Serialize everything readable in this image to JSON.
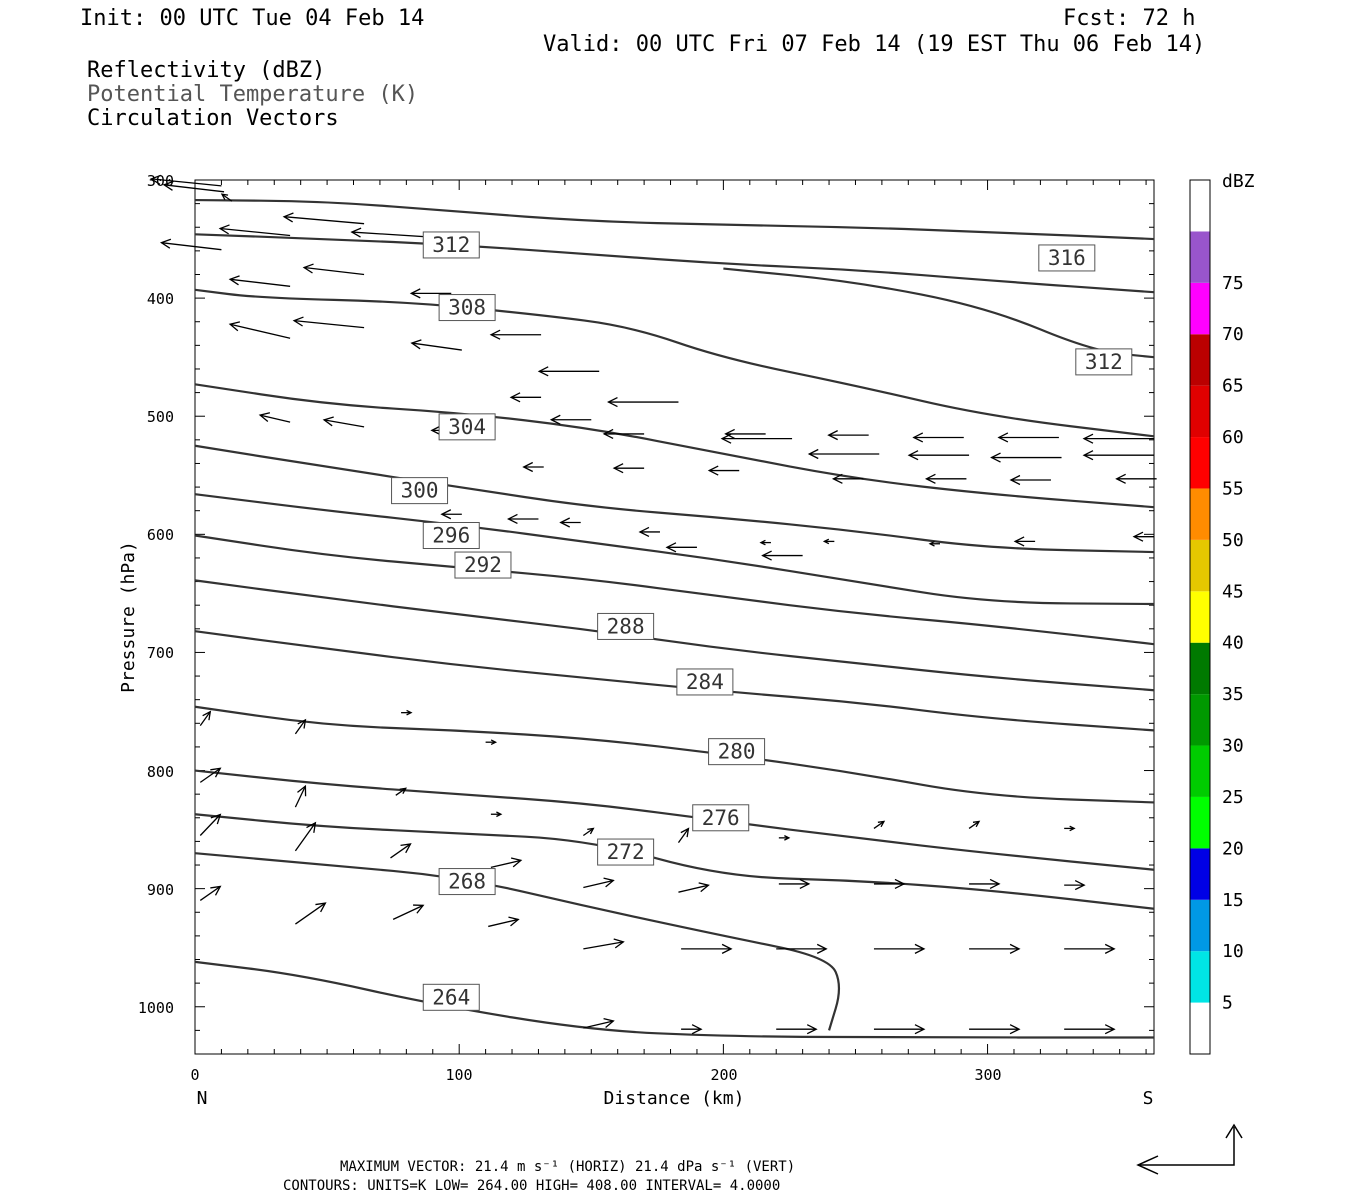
{
  "header": {
    "init": "Init: 00 UTC Tue 04 Feb 14",
    "fcst": "Fcst:   72 h",
    "valid": "Valid: 00 UTC Fri 07 Feb 14 (19 EST Thu 06 Feb 14)",
    "fields": [
      {
        "text": "Reflectivity (dBZ)",
        "color": "#000000"
      },
      {
        "text": "Potential Temperature (K)",
        "color": "#555555"
      },
      {
        "text": "Circulation Vectors",
        "color": "#000000"
      }
    ]
  },
  "footer": {
    "line1": "MAXIMUM VECTOR:  21.4 m s⁻¹ (HORIZ)        21.4 dPa s⁻¹ (VERT)",
    "line2": "CONTOURS:  UNITS=K  LOW=   264.00        HIGH=   408.00        INTERVAL=    4.0000"
  },
  "colorbar": {
    "title": "dBZ",
    "levels": [
      "5",
      "10",
      "15",
      "20",
      "25",
      "30",
      "35",
      "40",
      "45",
      "50",
      "55",
      "60",
      "65",
      "70",
      "75"
    ],
    "colors": [
      "#ffffff",
      "#00e5e5",
      "#0099e5",
      "#0000e5",
      "#00ff00",
      "#00cc00",
      "#009900",
      "#007a00",
      "#ffff00",
      "#e5c800",
      "#ff8c00",
      "#ff0000",
      "#e00000",
      "#bb0000",
      "#ff00ff",
      "#9955cc",
      "#ffffff"
    ]
  },
  "chart_data": {
    "type": "line",
    "title": "",
    "xlabel": "Distance (km)",
    "ylabel": "Pressure (hPa)",
    "xlim": [
      0,
      363
    ],
    "ylim": [
      1040,
      300
    ],
    "x_ticks": [
      "0",
      "100",
      "200",
      "300"
    ],
    "y_ticks": [
      "300",
      "400",
      "500",
      "600",
      "700",
      "800",
      "900",
      "1000"
    ],
    "x_end_labels": {
      "left": "N",
      "right": "S"
    },
    "contour_color": "#333333",
    "series": [
      {
        "name": "316",
        "label_at": [
          330,
          366
        ],
        "points": [
          [
            0,
            317
          ],
          [
            50,
            318
          ],
          [
            100,
            327
          ],
          [
            150,
            335
          ],
          [
            200,
            338
          ],
          [
            250,
            340
          ],
          [
            300,
            344
          ],
          [
            363,
            350
          ]
        ]
      },
      {
        "name": "312",
        "label_at": [
          97,
          355
        ],
        "points": [
          [
            0,
            346
          ],
          [
            50,
            350
          ],
          [
            100,
            355
          ],
          [
            150,
            363
          ],
          [
            200,
            371
          ],
          [
            250,
            376
          ],
          [
            300,
            385
          ],
          [
            363,
            395
          ]
        ]
      },
      {
        "name": "312",
        "label_at": [
          344,
          454
        ],
        "points": [
          [
            200,
            375
          ],
          [
            250,
            386
          ],
          [
            300,
            408
          ],
          [
            340,
            445
          ],
          [
            363,
            450
          ]
        ]
      },
      {
        "name": "308",
        "label_at": [
          103,
          408
        ],
        "points": [
          [
            0,
            393
          ],
          [
            25,
            400
          ],
          [
            80,
            403
          ],
          [
            130,
            414
          ],
          [
            165,
            424
          ],
          [
            200,
            451
          ],
          [
            250,
            474
          ],
          [
            300,
            500
          ],
          [
            363,
            517
          ]
        ]
      },
      {
        "name": "304",
        "label_at": [
          103,
          509
        ],
        "points": [
          [
            0,
            473
          ],
          [
            50,
            490
          ],
          [
            100,
            497
          ],
          [
            150,
            510
          ],
          [
            200,
            532
          ],
          [
            250,
            553
          ],
          [
            300,
            566
          ],
          [
            363,
            577
          ]
        ]
      },
      {
        "name": "300",
        "label_at": [
          85,
          563
        ],
        "points": [
          [
            0,
            525
          ],
          [
            50,
            543
          ],
          [
            100,
            560
          ],
          [
            150,
            577
          ],
          [
            200,
            586
          ],
          [
            250,
            597
          ],
          [
            300,
            612
          ],
          [
            363,
            615
          ]
        ]
      },
      {
        "name": "296",
        "label_at": [
          97,
          601
        ],
        "points": [
          [
            0,
            566
          ],
          [
            50,
            580
          ],
          [
            100,
            592
          ],
          [
            150,
            607
          ],
          [
            200,
            622
          ],
          [
            250,
            640
          ],
          [
            300,
            658
          ],
          [
            363,
            659
          ]
        ]
      },
      {
        "name": "292",
        "label_at": [
          109,
          626
        ],
        "points": [
          [
            0,
            601
          ],
          [
            50,
            618
          ],
          [
            100,
            628
          ],
          [
            150,
            638
          ],
          [
            200,
            653
          ],
          [
            250,
            667
          ],
          [
            300,
            677
          ],
          [
            363,
            693
          ]
        ]
      },
      {
        "name": "288",
        "label_at": [
          163,
          678
        ],
        "points": [
          [
            0,
            639
          ],
          [
            50,
            654
          ],
          [
            100,
            668
          ],
          [
            150,
            681
          ],
          [
            200,
            697
          ],
          [
            250,
            709
          ],
          [
            300,
            721
          ],
          [
            363,
            732
          ]
        ]
      },
      {
        "name": "284",
        "label_at": [
          193,
          725
        ],
        "points": [
          [
            0,
            682
          ],
          [
            50,
            697
          ],
          [
            100,
            711
          ],
          [
            150,
            722
          ],
          [
            200,
            733
          ],
          [
            250,
            742
          ],
          [
            300,
            756
          ],
          [
            363,
            766
          ]
        ]
      },
      {
        "name": "280",
        "label_at": [
          205,
          784
        ],
        "points": [
          [
            0,
            746
          ],
          [
            50,
            762
          ],
          [
            100,
            766
          ],
          [
            150,
            773
          ],
          [
            200,
            786
          ],
          [
            250,
            802
          ],
          [
            300,
            822
          ],
          [
            363,
            827
          ]
        ]
      },
      {
        "name": "276",
        "label_at": [
          199,
          840
        ],
        "points": [
          [
            0,
            800
          ],
          [
            50,
            812
          ],
          [
            100,
            820
          ],
          [
            150,
            828
          ],
          [
            200,
            843
          ],
          [
            250,
            857
          ],
          [
            300,
            870
          ],
          [
            363,
            884
          ]
        ]
      },
      {
        "name": "272",
        "label_at": [
          163,
          869
        ],
        "points": [
          [
            0,
            837
          ],
          [
            50,
            848
          ],
          [
            100,
            853
          ],
          [
            150,
            859
          ],
          [
            200,
            890
          ],
          [
            250,
            893
          ],
          [
            300,
            901
          ],
          [
            363,
            917
          ]
        ]
      },
      {
        "name": "268",
        "label_at": [
          103,
          894
        ],
        "points": [
          [
            0,
            870
          ],
          [
            50,
            880
          ],
          [
            100,
            890
          ],
          [
            150,
            916
          ],
          [
            200,
            940
          ],
          [
            240,
            958
          ],
          [
            245,
            983
          ],
          [
            240,
            1020
          ]
        ]
      },
      {
        "name": "264",
        "label_at": [
          97,
          992
        ],
        "points": [
          [
            0,
            962
          ],
          [
            40,
            973
          ],
          [
            90,
            998
          ],
          [
            150,
            1020
          ],
          [
            200,
            1025
          ],
          [
            260,
            1026
          ],
          [
            363,
            1026
          ]
        ]
      }
    ],
    "vectors": [
      [
        10,
        305,
        -7,
        -1
      ],
      [
        36,
        347,
        -7,
        -1
      ],
      [
        64,
        337,
        -8,
        -1
      ],
      [
        101,
        350,
        -11,
        -1
      ],
      [
        11,
        310,
        -6,
        -1
      ],
      [
        36,
        390,
        -6,
        -1
      ],
      [
        64,
        380,
        -6,
        -1
      ],
      [
        10,
        359,
        -6,
        -1
      ],
      [
        36,
        434,
        -6,
        -2
      ],
      [
        64,
        425,
        -7,
        -1
      ],
      [
        101,
        444,
        -5,
        -1
      ],
      [
        36,
        505,
        -3,
        -1
      ],
      [
        64,
        509,
        -4,
        -1
      ],
      [
        101,
        512,
        -3,
        0
      ],
      [
        101,
        583,
        -2,
        0
      ],
      [
        130,
        587,
        -3,
        0
      ],
      [
        190,
        611,
        -3,
        0
      ],
      [
        230,
        618,
        -4,
        0
      ],
      [
        14,
        318,
        -1,
        -1
      ],
      [
        97,
        396,
        -4,
        0
      ],
      [
        131,
        431,
        -5,
        0
      ],
      [
        153,
        462,
        -6,
        0
      ],
      [
        183,
        488,
        -7,
        0
      ],
      [
        226,
        519,
        -7,
        0
      ],
      [
        259,
        532,
        -7,
        0
      ],
      [
        293,
        533,
        -6,
        0
      ],
      [
        328,
        535,
        -7,
        0
      ],
      [
        363,
        533,
        -7,
        0
      ],
      [
        131,
        484,
        -3,
        0
      ],
      [
        150,
        503,
        -4,
        0
      ],
      [
        170,
        515,
        -4,
        0
      ],
      [
        216,
        515,
        -4,
        0
      ],
      [
        255,
        516,
        -4,
        0
      ],
      [
        291,
        518,
        -5,
        0
      ],
      [
        327,
        518,
        -6,
        0
      ],
      [
        363,
        519,
        -7,
        0
      ],
      [
        132,
        543,
        -2,
        0
      ],
      [
        170,
        544,
        -3,
        0
      ],
      [
        206,
        546,
        -3,
        0
      ],
      [
        253,
        553,
        -3,
        0
      ],
      [
        292,
        553,
        -4,
        0
      ],
      [
        324,
        554,
        -4,
        0
      ],
      [
        364,
        553,
        -4,
        0
      ],
      [
        146,
        590,
        -2,
        0
      ],
      [
        176,
        598,
        -2,
        0
      ],
      [
        218,
        607,
        -1,
        0
      ],
      [
        242,
        606,
        -1,
        0
      ],
      [
        282,
        608,
        -1,
        0
      ],
      [
        318,
        606,
        -2,
        0
      ],
      [
        363,
        602,
        -2,
        0
      ],
      [
        2,
        762,
        1,
        -2
      ],
      [
        38,
        769,
        1,
        -2
      ],
      [
        78,
        751,
        1,
        0
      ],
      [
        110,
        776,
        1,
        0
      ],
      [
        2,
        810,
        2,
        -2
      ],
      [
        38,
        831,
        1,
        -3
      ],
      [
        76,
        821,
        1,
        -1
      ],
      [
        112,
        837,
        1,
        0
      ],
      [
        2,
        855,
        2,
        -3
      ],
      [
        38,
        868,
        2,
        -4
      ],
      [
        74,
        874,
        2,
        -2
      ],
      [
        112,
        882,
        3,
        -1
      ],
      [
        2,
        910,
        2,
        -2
      ],
      [
        38,
        930,
        3,
        -3
      ],
      [
        75,
        926,
        3,
        -2
      ],
      [
        111,
        932,
        3,
        -1
      ],
      [
        147,
        951,
        4,
        -1
      ],
      [
        184,
        951,
        5,
        0
      ],
      [
        220,
        951,
        5,
        0
      ],
      [
        257,
        951,
        5,
        0
      ],
      [
        293,
        951,
        5,
        0
      ],
      [
        329,
        951,
        5,
        0
      ],
      [
        147,
        1018,
        3,
        -1
      ],
      [
        184,
        1019,
        2,
        0
      ],
      [
        220,
        1019,
        4,
        0
      ],
      [
        257,
        1019,
        5,
        0
      ],
      [
        293,
        1019,
        5,
        0
      ],
      [
        329,
        1019,
        5,
        0
      ],
      [
        147,
        899,
        3,
        -1
      ],
      [
        183,
        903,
        3,
        -1
      ],
      [
        221,
        896,
        3,
        0
      ],
      [
        257,
        896,
        3,
        0
      ],
      [
        293,
        896,
        3,
        0
      ],
      [
        329,
        897,
        2,
        0
      ],
      [
        147,
        855,
        1,
        -1
      ],
      [
        183,
        861,
        1,
        -2
      ],
      [
        221,
        857,
        1,
        0
      ],
      [
        257,
        849,
        1,
        -1
      ],
      [
        293,
        849,
        1,
        -1
      ],
      [
        329,
        849,
        1,
        0
      ]
    ]
  }
}
